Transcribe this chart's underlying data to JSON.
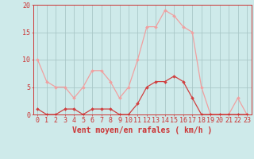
{
  "hours": [
    0,
    1,
    2,
    3,
    4,
    5,
    6,
    7,
    8,
    9,
    10,
    11,
    12,
    13,
    14,
    15,
    16,
    17,
    18,
    19,
    20,
    21,
    22,
    23
  ],
  "vent_moyen": [
    1,
    0,
    0,
    1,
    1,
    0,
    1,
    1,
    1,
    0,
    0,
    2,
    5,
    6,
    6,
    7,
    6,
    3,
    0,
    0,
    0,
    0,
    0,
    0
  ],
  "rafales": [
    10,
    6,
    5,
    5,
    3,
    5,
    8,
    8,
    6,
    3,
    5,
    10,
    16,
    16,
    19,
    18,
    16,
    15,
    5,
    0,
    0,
    0,
    3,
    0
  ],
  "line_color_moyen": "#d04040",
  "line_color_rafales": "#f0a0a0",
  "background_color": "#ceeaea",
  "grid_color": "#aac8c8",
  "axis_color": "#cc3333",
  "ylim": [
    0,
    20
  ],
  "yticks": [
    0,
    5,
    10,
    15,
    20
  ],
  "xlabel": "Vent moyen/en rafales ( km/h )",
  "tick_fontsize": 6,
  "label_fontsize": 7
}
